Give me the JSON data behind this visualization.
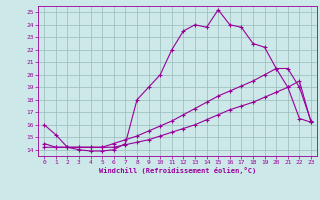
{
  "xlabel": "Windchill (Refroidissement éolien,°C)",
  "xlim": [
    -0.5,
    23.5
  ],
  "ylim": [
    13.5,
    25.5
  ],
  "xticks": [
    0,
    1,
    2,
    3,
    4,
    5,
    6,
    7,
    8,
    9,
    10,
    11,
    12,
    13,
    14,
    15,
    16,
    17,
    18,
    19,
    20,
    21,
    22,
    23
  ],
  "yticks": [
    14,
    15,
    16,
    17,
    18,
    19,
    20,
    21,
    22,
    23,
    24,
    25
  ],
  "bg_color": "#cce8e8",
  "line_color": "#990099",
  "grid_color": "#99bbbb",
  "line1_x": [
    0,
    1,
    2,
    3,
    4,
    5,
    6,
    7,
    8,
    9,
    10,
    11,
    12,
    13,
    14,
    15,
    16,
    17,
    18,
    19,
    20,
    21,
    22,
    23
  ],
  "line1_y": [
    16.0,
    15.2,
    14.2,
    14.0,
    13.9,
    13.9,
    14.0,
    14.5,
    18.0,
    19.0,
    20.0,
    22.0,
    23.5,
    24.0,
    23.8,
    25.2,
    24.0,
    23.8,
    22.5,
    22.2,
    20.5,
    19.0,
    16.5,
    16.2
  ],
  "line2_x": [
    0,
    1,
    2,
    3,
    4,
    5,
    6,
    7,
    8,
    9,
    10,
    11,
    12,
    13,
    14,
    15,
    16,
    17,
    18,
    19,
    20,
    21,
    22,
    23
  ],
  "line2_y": [
    14.5,
    14.2,
    14.2,
    14.2,
    14.2,
    14.2,
    14.5,
    14.8,
    15.1,
    15.5,
    15.9,
    16.3,
    16.8,
    17.3,
    17.8,
    18.3,
    18.7,
    19.1,
    19.5,
    20.0,
    20.5,
    20.5,
    19.0,
    16.3
  ],
  "line3_x": [
    0,
    1,
    2,
    3,
    4,
    5,
    6,
    7,
    8,
    9,
    10,
    11,
    12,
    13,
    14,
    15,
    16,
    17,
    18,
    19,
    20,
    21,
    22,
    23
  ],
  "line3_y": [
    14.2,
    14.2,
    14.2,
    14.2,
    14.2,
    14.2,
    14.2,
    14.4,
    14.6,
    14.8,
    15.1,
    15.4,
    15.7,
    16.0,
    16.4,
    16.8,
    17.2,
    17.5,
    17.8,
    18.2,
    18.6,
    19.0,
    19.5,
    16.2
  ]
}
